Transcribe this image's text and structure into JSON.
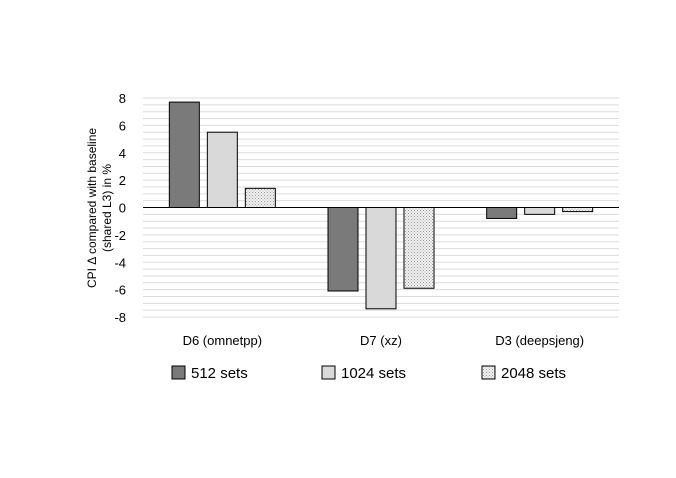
{
  "chart_data": {
    "type": "bar",
    "categories": [
      "D6 (omnetpp)",
      "D7 (xz)",
      "D3 (deepsjeng)"
    ],
    "series": [
      {
        "name": "512 sets",
        "values": [
          7.7,
          -6.1,
          -0.8
        ],
        "color": "#7a7a7a",
        "pattern": "solid"
      },
      {
        "name": "1024 sets",
        "values": [
          5.5,
          -7.4,
          -0.5
        ],
        "color": "#d9d9d9",
        "pattern": "solid"
      },
      {
        "name": "2048 sets",
        "values": [
          1.4,
          -5.9,
          -0.3
        ],
        "color": "#e8e8e8",
        "pattern": "dotted"
      }
    ],
    "ylabel_line1": "CPI Δ compared with baseline",
    "ylabel_line2": "(shared L3) in %",
    "ylim": [
      -8,
      8
    ],
    "yticks": [
      "8",
      "6",
      "4",
      "2",
      "0",
      "-2",
      "-4",
      "-6",
      "-8"
    ],
    "grid": true,
    "legend": "bottom"
  }
}
